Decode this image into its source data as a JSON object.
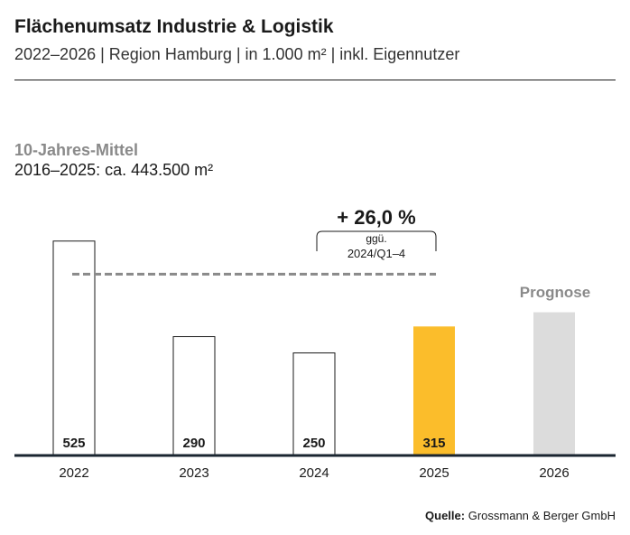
{
  "header": {
    "title": "Flächenumsatz Industrie & Logistik",
    "subtitle": "2022–2026 | Region Hamburg | in 1.000 m² | inkl. Eigennutzer"
  },
  "average": {
    "label": "10-Jahres-Mittel",
    "value_text": "2016–2025: ca. 443.500 m²"
  },
  "change": {
    "value": "+ 26,0 %",
    "note_line1": "ggü.",
    "note_line2": "2024/Q1–4"
  },
  "forecast_label": "Prognose",
  "source": {
    "label": "Quelle:",
    "text": "Grossmann & Berger GmbH"
  },
  "chart_data": {
    "type": "bar",
    "title": "Flächenumsatz Industrie & Logistik",
    "categories": [
      "2022",
      "2023",
      "2024",
      "2025",
      "2026"
    ],
    "values": [
      525,
      290,
      250,
      315,
      350
    ],
    "value_labels": [
      "525",
      "290",
      "250",
      "315",
      ""
    ],
    "average_line": 443.5,
    "ylim": [
      0,
      550
    ],
    "unit": "1.000 m²",
    "colors": {
      "default_fill": "#ffffff",
      "default_stroke": "#1a1a1a",
      "highlight": "#fbbd2b",
      "forecast": "#dcdcdc",
      "average_line": "#8a8a8a",
      "axis": "#1a2530"
    },
    "styles": [
      "outline",
      "outline",
      "outline",
      "highlight",
      "forecast"
    ]
  }
}
